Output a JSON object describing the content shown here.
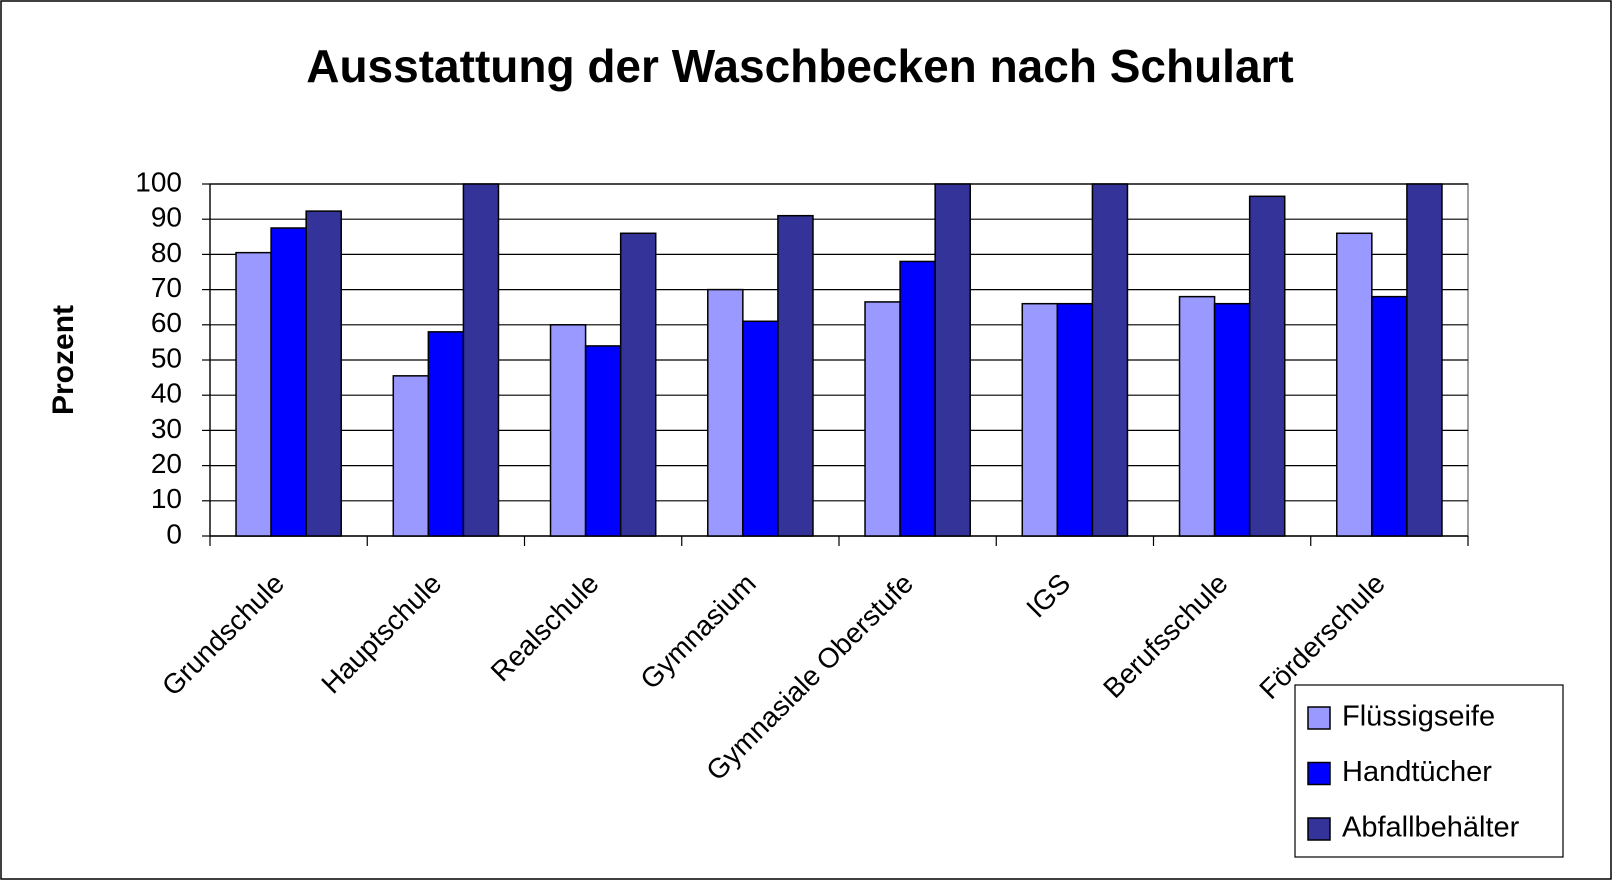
{
  "chart_data": {
    "type": "bar",
    "title": "Ausstattung der Waschbecken nach Schulart",
    "y_label": "Prozent",
    "categories": [
      "Grundschule",
      "Hauptschule",
      "Realschule",
      "Gymnasium",
      "Gymnasiale Oberstufe",
      "IGS",
      "Berufsschule",
      "Förderschule"
    ],
    "series": [
      {
        "name": "Flüssigseife",
        "color": "#9999ff",
        "values": [
          80.5,
          45.5,
          60,
          70,
          66.5,
          66,
          68,
          86
        ]
      },
      {
        "name": "Handtücher",
        "color": "#0000ff",
        "values": [
          87.5,
          58,
          54,
          61,
          78,
          66,
          66,
          68
        ]
      },
      {
        "name": "Abfallbehälter",
        "color": "#333399",
        "values": [
          92.3,
          100,
          86,
          91,
          100,
          100,
          96.5,
          100
        ]
      }
    ],
    "ylim": [
      0,
      100
    ],
    "yticks": [
      0,
      10,
      20,
      30,
      40,
      50,
      60,
      70,
      80,
      90,
      100
    ],
    "grid": true,
    "legend": "lower right"
  }
}
